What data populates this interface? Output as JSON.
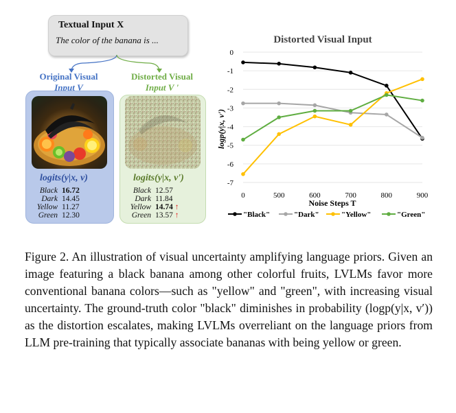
{
  "textual_input": {
    "title": "Textual Input X",
    "prompt": "The color of the banana is ..."
  },
  "labels": {
    "original_line1": "Original Visual",
    "original_line2": "Input V",
    "distorted_line1": "Distorted Visual",
    "distorted_line2": "Input V '"
  },
  "original_logits": {
    "title": "logits(y|x, v)",
    "rows": [
      {
        "label": "Black",
        "value": "16.72"
      },
      {
        "label": "Dark",
        "value": "14.45"
      },
      {
        "label": "Yellow",
        "value": "11.27"
      },
      {
        "label": "Green",
        "value": "12.30"
      }
    ]
  },
  "distorted_logits": {
    "title": "logits(y|x, v')",
    "rows": [
      {
        "label": "Black",
        "value": "12.57"
      },
      {
        "label": "Dark",
        "value": "11.84"
      },
      {
        "label": "Yellow",
        "value": "14.74",
        "arrow": "↑"
      },
      {
        "label": "Green",
        "value": "13.57",
        "arrow": "↑"
      }
    ]
  },
  "chart_data": {
    "type": "line",
    "title": "Distorted Visual Input",
    "xlabel": "Noise Steps T",
    "ylabel": "logp(y|x, v')",
    "x": [
      0,
      500,
      600,
      700,
      800,
      900
    ],
    "xticks": [
      "0",
      "500",
      "600",
      "700",
      "800",
      "900"
    ],
    "yticks": [
      "0",
      "-1",
      "-2",
      "-3",
      "-4",
      "-5",
      "-6",
      "-7"
    ],
    "ylim": [
      -7,
      0
    ],
    "series": [
      {
        "name": "\"Black\"",
        "color": "#000000",
        "values": [
          -0.55,
          -0.62,
          -0.82,
          -1.1,
          -1.8,
          -4.65
        ]
      },
      {
        "name": "\"Dark\"",
        "color": "#a6a6a6",
        "values": [
          -2.75,
          -2.75,
          -2.85,
          -3.25,
          -3.35,
          -4.6
        ]
      },
      {
        "name": "\"Yellow\"",
        "color": "#ffc000",
        "values": [
          -6.55,
          -4.4,
          -3.45,
          -3.9,
          -2.2,
          -1.45
        ]
      },
      {
        "name": "\"Green\"",
        "color": "#5fad41",
        "values": [
          -4.7,
          -3.5,
          -3.15,
          -3.15,
          -2.3,
          -2.6
        ]
      }
    ]
  },
  "caption": "Figure 2. An illustration of visual uncertainty amplifying language priors. Given an image featuring a black banana among other colorful fruits, LVLMs favor more conventional banana colors—such as \"yellow\" and \"green\", with increasing visual uncertainty. The ground-truth color \"black\" diminishes in probability (logp(y|x, v′)) as the distortion escalates, making LVLMs overreliant on the language priors from LLM pre-training that typically associate bananas with being yellow or green."
}
